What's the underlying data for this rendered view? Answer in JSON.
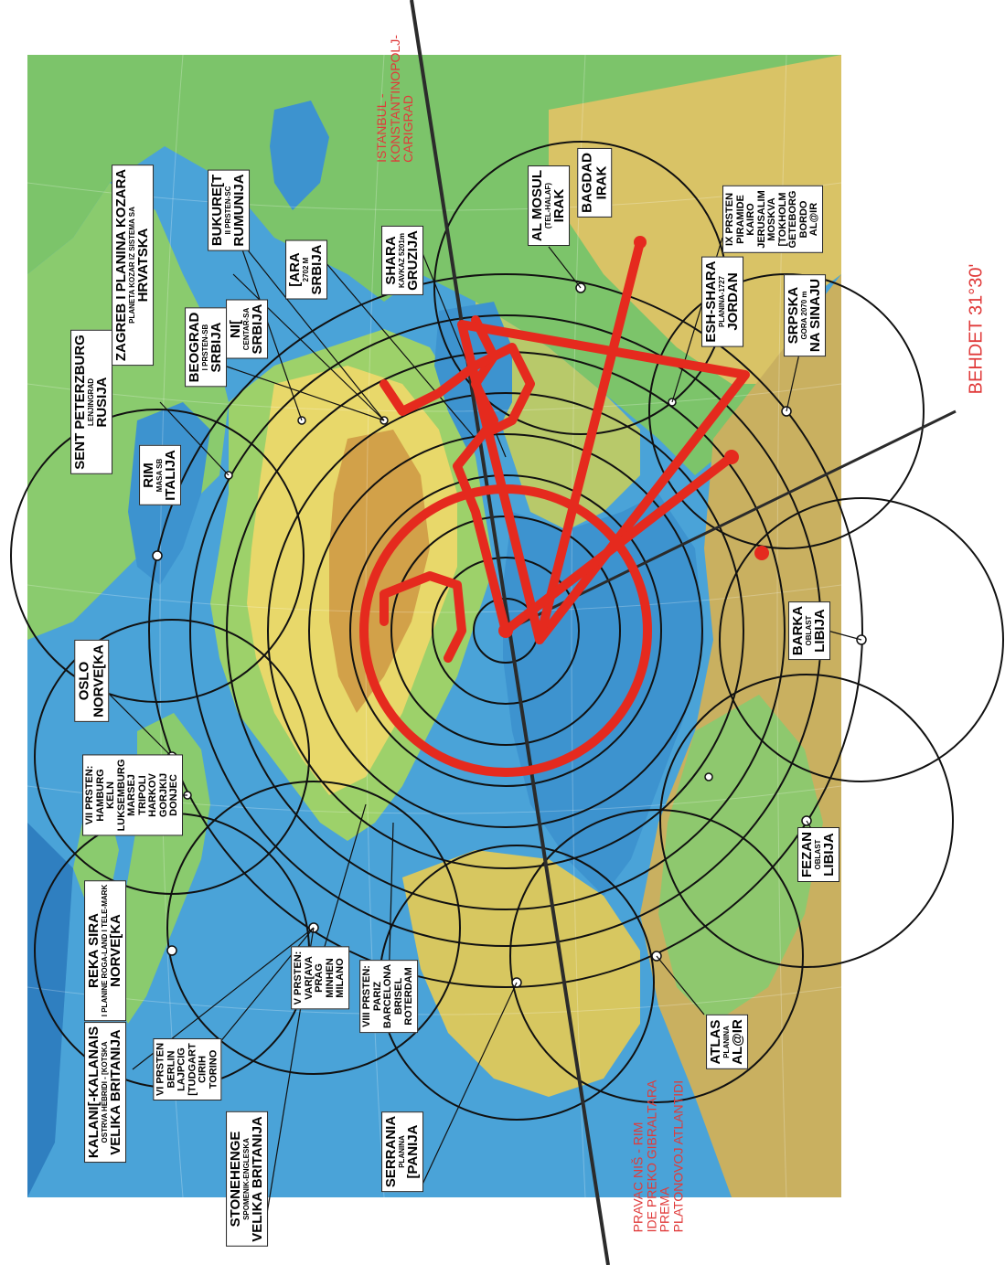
{
  "map": {
    "colors": {
      "sea": "#4aa3d8",
      "deep_sea": "#2f7fc0",
      "lowland": "#7cc46a",
      "upland": "#e8d86a",
      "mountain": "#c98a3c",
      "rings": "#111111",
      "figure": "#e52a1e",
      "axis": "#2b2b2b"
    }
  },
  "labels": [
    {
      "id": "sent-peterzburg",
      "lines": [
        "SENT PETERZBURG",
        "LENJINGRAD",
        "RUSIJA"
      ]
    },
    {
      "id": "rim",
      "lines": [
        "RIM",
        "MASA SB",
        "ITALIJA"
      ]
    },
    {
      "id": "zagreb",
      "lines": [
        "ZAGREB I PLANINA KOZARA",
        "PLANETA KOZAR IZ SISTEMA SA",
        "HRVATSKA"
      ]
    },
    {
      "id": "beograd",
      "lines": [
        "BEOGRAD",
        "I PRSTEN-SB",
        "SRBIJA"
      ]
    },
    {
      "id": "nis",
      "lines": [
        "NI[",
        "CENTAR-SA",
        "SRBIJA"
      ]
    },
    {
      "id": "bukurest",
      "lines": [
        "BUKURE[T",
        "II PRSTEN-SC",
        "RUMUNIJA"
      ]
    },
    {
      "id": "zara",
      "lines": [
        "[ARA",
        "2702 M",
        "SRBIJA"
      ]
    },
    {
      "id": "shara",
      "lines": [
        "SHARA",
        "KAVKAZ 5201m",
        "GRUZIJA"
      ]
    },
    {
      "id": "al-mosul",
      "lines": [
        "AL MOSUL",
        "(TEL-HALAF)",
        "IRAK"
      ]
    },
    {
      "id": "bagdad",
      "lines": [
        "BAGDAD",
        "IRAK"
      ]
    },
    {
      "id": "ix-prsten",
      "lines": [
        "IX PRSTEN",
        "PIRAMIDE",
        "KAIRO",
        "JERUSALIM",
        "MOSKVA",
        "[TOKHOLM",
        "GETEBORG",
        "BORDO",
        "AL@IR"
      ]
    },
    {
      "id": "esh-shara",
      "lines": [
        "ESH-SHARA",
        "PLANINA-1727",
        "JORDAN"
      ]
    },
    {
      "id": "srpska-gora",
      "lines": [
        "SRPSKA",
        "GORA 2070 m",
        "NA SINAJU"
      ]
    },
    {
      "id": "barka",
      "lines": [
        "BARKA",
        "OBLAST",
        "LIBIJA"
      ]
    },
    {
      "id": "oslo",
      "lines": [
        "OSLO",
        "NORVE[KA"
      ]
    },
    {
      "id": "vii-prsten",
      "lines": [
        "VII PRSTEN:",
        "HAMBURG",
        "KELN",
        "LUKSEMBURG",
        "MARSEJ",
        "TRIPOLI",
        "HARKOV",
        "GORJKIJ",
        "DONJEC"
      ]
    },
    {
      "id": "reka-sira",
      "lines": [
        "REKA SIRA",
        "I PLANINE ROGA-LAND I TELE-MARK",
        "NORVE[KA"
      ]
    },
    {
      "id": "v-prsten",
      "lines": [
        "V PRSTEN:",
        "VAR[AVA",
        "PRAG",
        "MINHEN",
        "MILANO"
      ]
    },
    {
      "id": "viii-prsten",
      "lines": [
        "VIII PRSTEN:",
        "PARIZ",
        "BARCELONA",
        "BRISEL",
        "ROTERDAM"
      ]
    },
    {
      "id": "kalanis",
      "lines": [
        "KALANI[-KALANAIS",
        "OSTRVA HEBRIDI - [KOTSKA",
        "VELIKA BRITANIJA"
      ]
    },
    {
      "id": "vi-prsten",
      "lines": [
        "VI PRSTEN",
        "BERLIN",
        "LAJPCIG",
        "[TUDGART",
        "CIRIH",
        "TORINO"
      ]
    },
    {
      "id": "stonehenge",
      "lines": [
        "STONEHENGE",
        "SPOMENIK-ENGLESKA",
        "VELIKA BRITANIJA"
      ]
    },
    {
      "id": "serrania",
      "lines": [
        "SERRANIA",
        "PLANINA",
        "[PANIJA"
      ]
    },
    {
      "id": "atlas",
      "lines": [
        "ATLAS",
        "PLANINA",
        "AL@IR"
      ]
    },
    {
      "id": "fezan",
      "lines": [
        "FEZAN",
        "OBLAST",
        "LIBIJA"
      ]
    }
  ],
  "notes": {
    "istanbul": [
      "ISTANBUL -",
      "KONSTANTINOPOLJ-",
      "CARIGRAD"
    ],
    "behdet": "BEHDET 31°30'",
    "pravac": [
      "PRAVAC NIŠ - RIM",
      "IDE PREKO GIBRALTARA",
      "PREMA",
      "PLATONOVOJ ATLANTIDI"
    ]
  }
}
